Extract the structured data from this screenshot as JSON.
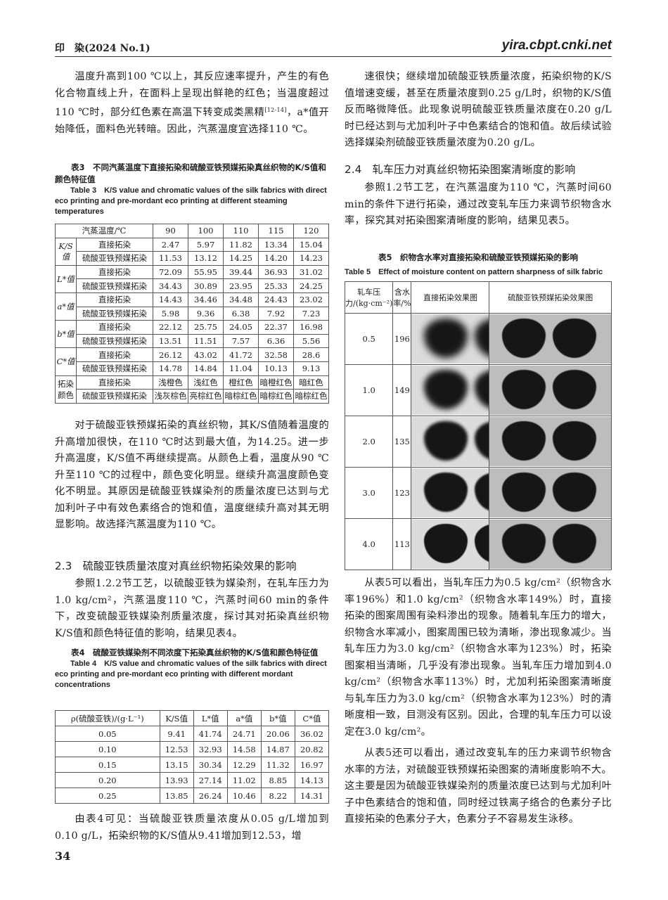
{
  "header": {
    "journal": "印　染(2024 No.1)",
    "site": "yira.cbpt.cnki.net"
  },
  "page_number": "34",
  "left": {
    "p1_a": "温度升高到100 ℃以上，其反应速率提升，产生的有色化合物直线上升，在面料上呈现出鲜艳的红色；当温度超过110 ℃时，部分红色素在高温下转变成类黑精",
    "p1_cite": "[12-14]",
    "p1_b": "，a*值开始降低，面料色光转暗。因此，汽蒸温度宜选择110 ℃。",
    "table3": {
      "caption_cn": "表3　不同汽蒸温度下直接拓染和硫酸亚铁预媒拓染真丝织物的K/S值和颜色特征值",
      "caption_en": "Table 3　K/S value and chromatic values of the silk fabrics with direct eco printing and pre-mordant eco printing at different steaming temperatures",
      "header": [
        "汽蒸温度/℃",
        "90",
        "100",
        "110",
        "115",
        "120"
      ],
      "groups": [
        {
          "label": "K/S值",
          "rows": [
            {
              "method": "直接拓染",
              "values": [
                "2.47",
                "5.97",
                "11.82",
                "13.34",
                "15.04"
              ]
            },
            {
              "method": "硫酸亚铁预媒拓染",
              "values": [
                "11.53",
                "13.12",
                "14.25",
                "14.20",
                "14.23"
              ]
            }
          ]
        },
        {
          "label": "L*值",
          "rows": [
            {
              "method": "直接拓染",
              "values": [
                "72.09",
                "55.95",
                "39.44",
                "36.93",
                "31.02"
              ]
            },
            {
              "method": "硫酸亚铁预媒拓染",
              "values": [
                "34.43",
                "30.89",
                "23.95",
                "25.33",
                "24.25"
              ]
            }
          ]
        },
        {
          "label": "a*值",
          "rows": [
            {
              "method": "直接拓染",
              "values": [
                "14.43",
                "34.46",
                "34.48",
                "24.43",
                "23.02"
              ]
            },
            {
              "method": "硫酸亚铁预媒拓染",
              "values": [
                "5.98",
                "9.36",
                "6.38",
                "7.92",
                "7.23"
              ]
            }
          ]
        },
        {
          "label": "b*值",
          "rows": [
            {
              "method": "直接拓染",
              "values": [
                "22.12",
                "25.75",
                "24.05",
                "22.37",
                "16.98"
              ]
            },
            {
              "method": "硫酸亚铁预媒拓染",
              "values": [
                "13.51",
                "11.51",
                "7.57",
                "6.36",
                "5.56"
              ]
            }
          ]
        },
        {
          "label": "C*值",
          "rows": [
            {
              "method": "直接拓染",
              "values": [
                "26.12",
                "43.02",
                "41.72",
                "32.58",
                "28.6"
              ]
            },
            {
              "method": "硫酸亚铁预媒拓染",
              "values": [
                "14.78",
                "14.84",
                "11.04",
                "10.13",
                "9.13"
              ]
            }
          ]
        },
        {
          "label": "拓染颜色",
          "rows": [
            {
              "method": "直接拓染",
              "values": [
                "浅橙色",
                "浅红色",
                "橙红色",
                "暗橙红色",
                "暗红色"
              ]
            },
            {
              "method": "硫酸亚铁预媒拓染",
              "values": [
                "浅灰棕色",
                "亮棕红色",
                "暗棕红色",
                "暗棕红色",
                "暗棕红色"
              ]
            }
          ]
        }
      ]
    },
    "p2": "对于硫酸亚铁预媒拓染的真丝织物，其K/S值随着温度的升高增加很快，在110 ℃时达到最大值，为14.25。进一步升高温度，K/S值不再继续提高。从颜色上看，温度从90 ℃升至110 ℃的过程中，颜色变化明显。继续升高温度颜色变化不明显。其原因是硫酸亚铁媒染剂的质量浓度已达到与尤加利叶子中有效色素络合的饱和值，温度继续升高对其无明显影响。故选择汽蒸温度为110 ℃。",
    "h23": "2.3　硫酸亚铁质量浓度对真丝织物拓染效果的影响",
    "p3": "参照1.2.2节工艺，以硫酸亚铁为媒染剂，在轧车压力为1.0 kg/cm²，汽蒸温度110 ℃，汽蒸时间60 min的条件下，改变硫酸亚铁媒染剂质量浓度，探讨其对拓染真丝织物K/S值和颜色特征值的影响，结果见表4。",
    "table4": {
      "caption_cn": "表4　硫酸亚铁媒染剂不同浓度下拓染真丝织物的K/S值和颜色特征值",
      "caption_en": "Table 4　K/S value and chromatic values of the silk fabrics with direct eco printing and pre-mordant eco printing with different mordant concentrations",
      "header": [
        "ρ(硫酸亚铁)/(g·L⁻¹)",
        "K/S值",
        "L*值",
        "a*值",
        "b*值",
        "C*值"
      ],
      "rows": [
        [
          "0.05",
          "9.41",
          "41.74",
          "24.71",
          "20.06",
          "36.02"
        ],
        [
          "0.10",
          "12.53",
          "32.93",
          "14.58",
          "14.87",
          "20.82"
        ],
        [
          "0.15",
          "13.15",
          "30.34",
          "12.29",
          "11.32",
          "16.97"
        ],
        [
          "0.20",
          "13.93",
          "27.14",
          "11.02",
          "8.85",
          "14.13"
        ],
        [
          "0.25",
          "13.85",
          "26.24",
          "10.46",
          "8.22",
          "14.31"
        ]
      ]
    },
    "p4": "由表4可见：当硫酸亚铁质量浓度从0.05 g/L增加到0.10 g/L，拓染织物的K/S值从9.41增加到12.53，增"
  },
  "right": {
    "p1": "速很快；继续增加硫酸亚铁质量浓度，拓染织物的K/S值增速变缓，甚至在质量浓度到0.25 g/L时，织物的K/S值反而略微降低。此现象说明硫酸亚铁质量浓度在0.20 g/L时已经达到与尤加利叶子中色素结合的饱和值。故后续试验选择媒染剂硫酸亚铁质量浓度为0.20 g/L。",
    "h24": "2.4　轧车压力对真丝织物拓染图案清晰度的影响",
    "p2": "参照1.2节工艺，在汽蒸温度为110 ℃，汽蒸时间60 min的条件下进行拓染，通过改变轧车压力来调节织物含水率，探究其对拓染图案清晰度的影响，结果见表5。",
    "table5": {
      "caption_cn": "表5　织物含水率对直接拓染和硫酸亚铁预媒拓染的影响",
      "caption_en": "Table 5　Effect of moisture content on pattern sharpness of silk fabric",
      "header": [
        "轧车压力/(kg·cm⁻²)",
        "含水率/%",
        "直接拓染效果图",
        "硫酸亚铁预媒拓染效果图"
      ],
      "rows": [
        [
          "0.5",
          "196"
        ],
        [
          "1.0",
          "149"
        ],
        [
          "2.0",
          "135"
        ],
        [
          "3.0",
          "123"
        ],
        [
          "4.0",
          "113"
        ]
      ]
    },
    "p3": "从表5可以看出，当轧车压力为0.5 kg/cm²（织物含水率196%）和1.0 kg/cm²（织物含水率149%）时，直接拓染的图案周围有染料渗出的现象。随着轧车压力的增大，织物含水率减小，图案周围已较为清晰，渗出现象减少。当轧车压力为3.0 kg/cm²（织物含水率为123%）时，拓染图案相当清晰，几乎没有渗出现象。当轧车压力增加到4.0 kg/cm²（织物含水率113%）时，尤加利拓染图案清晰度与轧车压力为3.0 kg/cm²（织物含水率为123%）时的清晰度相一致，目测没有区别。因此，合理的轧车压力可以设定在3.0 kg/cm²。",
    "p4": "从表5还可以看出，通过改变轧车的压力来调节织物含水率的方法，对硫酸亚铁预媒拓染图案的清晰度影响不大。这主要是因为硫酸亚铁媒染剂的质量浓度已达到与尤加利叶子中色素结合的饱和值，同时经过铁离子络合的色素分子比直接拓染的色素分子大，色素分子不容易发生泳移。"
  }
}
